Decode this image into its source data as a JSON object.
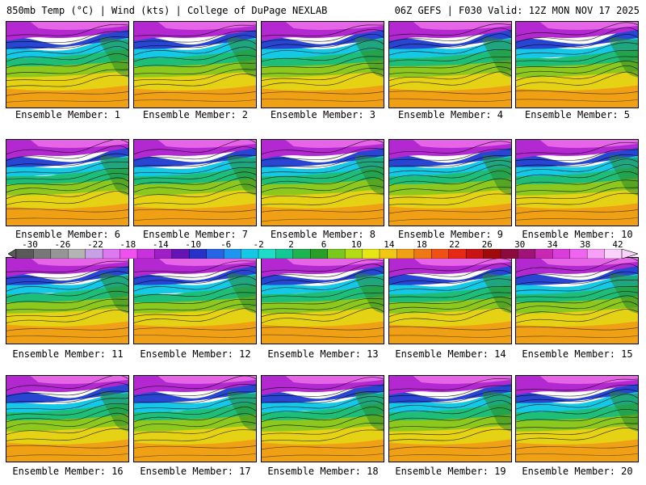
{
  "header": {
    "left": "850mb Temp (°C) | Wind (kts) | College of DuPage NEXLAB",
    "right": "06Z GEFS | F030 Valid: 12Z MON NOV 17 2025"
  },
  "members": [
    "Ensemble Member: 1",
    "Ensemble Member: 2",
    "Ensemble Member: 3",
    "Ensemble Member: 4",
    "Ensemble Member: 5",
    "Ensemble Member: 6",
    "Ensemble Member: 7",
    "Ensemble Member: 8",
    "Ensemble Member: 9",
    "Ensemble Member: 10",
    "Ensemble Member: 11",
    "Ensemble Member: 12",
    "Ensemble Member: 13",
    "Ensemble Member: 14",
    "Ensemble Member: 15",
    "Ensemble Member: 16",
    "Ensemble Member: 17",
    "Ensemble Member: 18",
    "Ensemble Member: 19",
    "Ensemble Member: 20"
  ],
  "colorbar": {
    "ticks": [
      "-30",
      "-26",
      "-22",
      "-18",
      "-14",
      "-10",
      "-6",
      "-2",
      "2",
      "6",
      "10",
      "14",
      "18",
      "22",
      "26",
      "30",
      "34",
      "38",
      "42"
    ],
    "colors": [
      "#5a5a5a",
      "#787878",
      "#969696",
      "#b4b4b4",
      "#c8a0e6",
      "#dc78f0",
      "#f050f0",
      "#c832dc",
      "#a01ec8",
      "#6414b4",
      "#2832c8",
      "#2864e6",
      "#1e96f0",
      "#14c8e6",
      "#1edcc8",
      "#14c896",
      "#1eb450",
      "#28a028",
      "#78c81e",
      "#b4dc14",
      "#e6e614",
      "#f0c814",
      "#f0a014",
      "#f07814",
      "#f05014",
      "#e62814",
      "#c81414",
      "#a00a0a",
      "#8c0a3c",
      "#a01478",
      "#c828b4",
      "#dc3cdc",
      "#f064f0",
      "#f8a0f8",
      "#fad2fa"
    ]
  }
}
